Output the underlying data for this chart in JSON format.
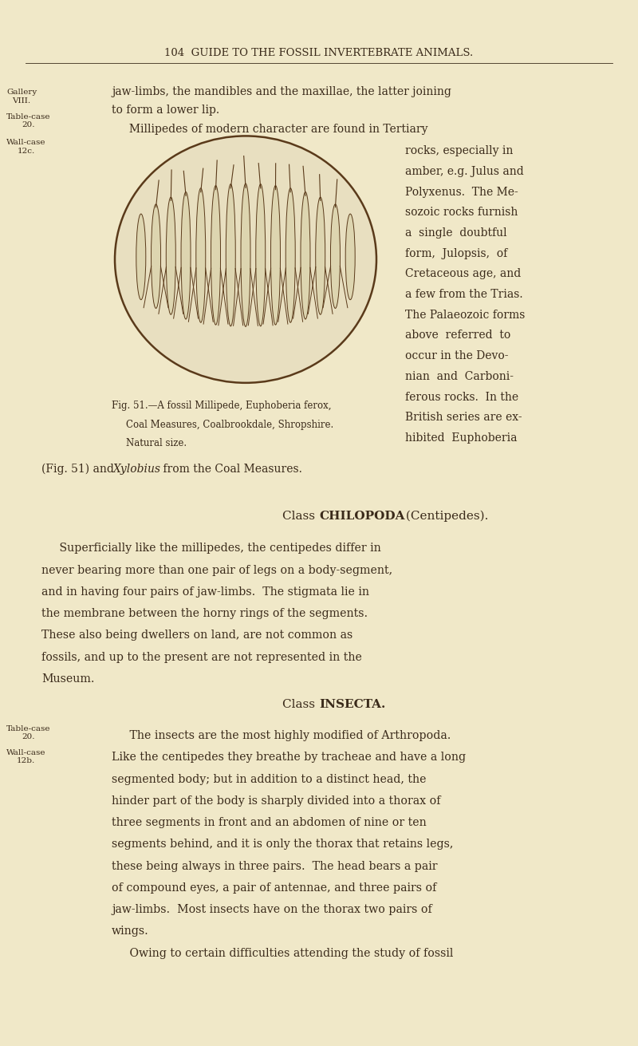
{
  "bg_color": "#f0e8c8",
  "text_color": "#3a2a1a",
  "page_width": 8.0,
  "page_height": 13.11,
  "header_text": "104  GUIDE TO THE FOSSIL INVERTEBRATE ANIMALS.",
  "para1_line1": "jaw-limbs, the mandibles and the maxillae, the latter joining",
  "para1_line2": "to form a lower lip.",
  "para2_first": "     Millipedes of modern character are found in Tertiary",
  "para2_right_lines": [
    "rocks, especially in",
    "amber, e.g. Julus and",
    "Polyxenus.  The Me-",
    "sozoic rocks furnish",
    "a  single  doubtful",
    "form,  Julopsis,  of",
    "Cretaceous age, and",
    "a few from the Trias.",
    "The Palaeozoic forms",
    "above  referred  to",
    "occur in the Devo-",
    "nian  and  Carboni-",
    "ferous rocks.  In the",
    "British series are ex-",
    "hibited  Euphoberia"
  ],
  "fig_caption_lines": [
    "Fig. 51.—A fossil Millipede, Euphoberia ferox,",
    "Coal Measures, Coalbrookdale, Shropshire.",
    "Natural size."
  ],
  "para3_pre": "(Fig. 51) and ",
  "para3_italic": "Xylobius",
  "para3_post": " from the Coal Measures.",
  "chilopoda_header_normal": "Class ",
  "chilopoda_header_bold": "CHILOPODA",
  "chilopoda_header_end": " (Centipedes).",
  "chilopoda_lines": [
    "     Superficially like the millipedes, the centipedes differ in",
    "never bearing more than one pair of legs on a body-segment,",
    "and in having four pairs of jaw-limbs.  The stigmata lie in",
    "the membrane between the horny rings of the segments.",
    "These also being dwellers on land, are not common as",
    "fossils, and up to the present are not represented in the",
    "Museum."
  ],
  "insecta_header_normal": "Class ",
  "insecta_header_bold": "INSECTA.",
  "insecta_lines": [
    "     The insects are the most highly modified of Arthropoda.",
    "Like the centipedes they breathe by tracheae and have a long",
    "segmented body; but in addition to a distinct head, the",
    "hinder part of the body is sharply divided into a thorax of",
    "three segments in front and an abdomen of nine or ten",
    "segments behind, and it is only the thorax that retains legs,",
    "these being always in three pairs.  The head bears a pair",
    "of compound eyes, a pair of antennae, and three pairs of",
    "jaw-limbs.  Most insects have on the thorax two pairs of",
    "wings.",
    "     Owing to certain difficulties attending the study of fossil"
  ],
  "margin_top_labels": [
    {
      "text": "Gallery\nVIII.",
      "yf": 0.085
    },
    {
      "text": "Table-case\n20.",
      "yf": 0.108
    },
    {
      "text": "Wall-case\n12c.",
      "yf": 0.133
    }
  ],
  "margin_bottom_labels": [
    {
      "text": "Table-case\n20.",
      "yf": 0.693
    },
    {
      "text": "Wall-case\n12b.",
      "yf": 0.716
    }
  ]
}
